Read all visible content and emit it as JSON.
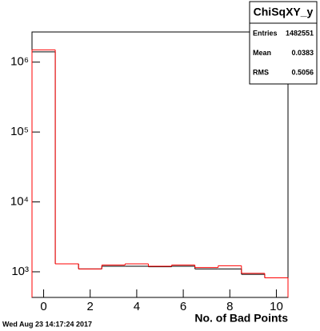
{
  "chart_data": {
    "type": "histogram",
    "title": "ChiSqXY_y",
    "xlabel": "No. of Bad Points",
    "timestamp": "Wed Aug 23 14:17:24 2017",
    "stats": [
      {
        "label": "Entries",
        "value": 1482551
      },
      {
        "label": "Mean",
        "value": 0.0383
      },
      {
        "label": "RMS",
        "value": 0.5056
      }
    ],
    "bins": [
      -0.5,
      0.5,
      1.5,
      2.5,
      3.5,
      4.5,
      5.5,
      6.5,
      7.5,
      8.5,
      9.5,
      10.5
    ],
    "series": [
      {
        "color": "#000000",
        "values": [
          1400000,
          1300,
          1100,
          1200,
          1200,
          1180,
          1200,
          1100,
          1100,
          920,
          820
        ]
      },
      {
        "color": "#ff0000",
        "values": [
          1500000,
          1300,
          1100,
          1250,
          1300,
          1200,
          1250,
          1150,
          1220,
          950,
          820
        ]
      }
    ],
    "xlim": [
      -0.5,
      10.5
    ],
    "xticks": [
      0,
      2,
      4,
      6,
      8,
      10
    ],
    "ylim": [
      430,
      2700000
    ],
    "yticks": [
      {
        "value": 1000,
        "label": "10³"
      },
      {
        "value": 10000,
        "label": "10⁴"
      },
      {
        "value": 100000,
        "label": "10⁵"
      },
      {
        "value": 1000000,
        "label": "10⁶"
      }
    ],
    "log_y": true,
    "grid": false
  }
}
